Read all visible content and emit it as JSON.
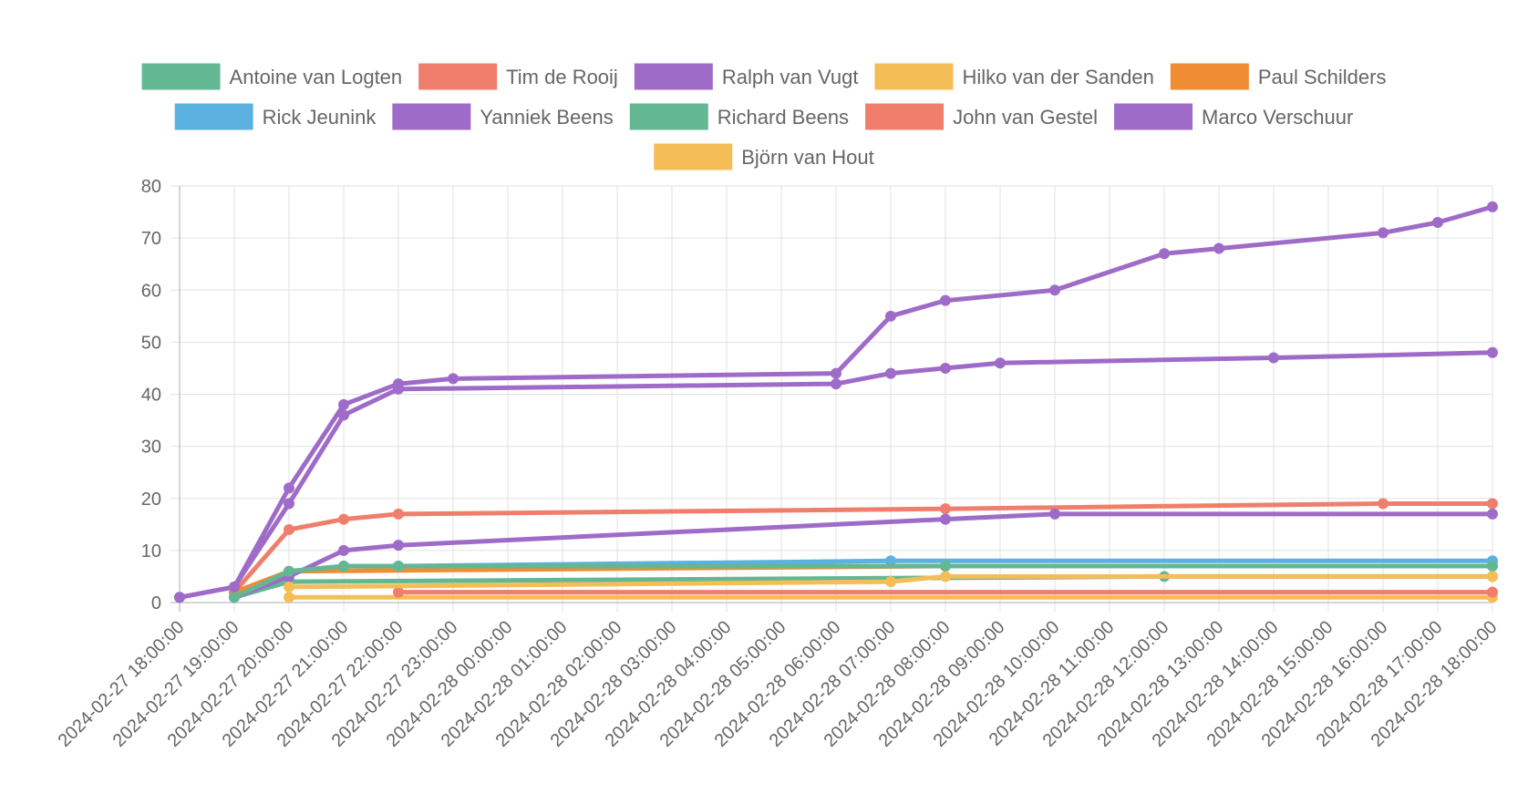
{
  "chart_data": {
    "type": "line",
    "x_unit": "datetime",
    "x_ticks": [
      "2024-02-27 18:00:00",
      "2024-02-27 19:00:00",
      "2024-02-27 20:00:00",
      "2024-02-27 21:00:00",
      "2024-02-27 22:00:00",
      "2024-02-27 23:00:00",
      "2024-02-28 00:00:00",
      "2024-02-28 01:00:00",
      "2024-02-28 02:00:00",
      "2024-02-28 03:00:00",
      "2024-02-28 04:00:00",
      "2024-02-28 05:00:00",
      "2024-02-28 06:00:00",
      "2024-02-28 07:00:00",
      "2024-02-28 08:00:00",
      "2024-02-28 09:00:00",
      "2024-02-28 10:00:00",
      "2024-02-28 11:00:00",
      "2024-02-28 12:00:00",
      "2024-02-28 13:00:00",
      "2024-02-28 14:00:00",
      "2024-02-28 15:00:00",
      "2024-02-28 16:00:00",
      "2024-02-28 17:00:00",
      "2024-02-28 18:00:00"
    ],
    "ylim": [
      0,
      80
    ],
    "y_ticks": [
      0,
      10,
      20,
      30,
      40,
      50,
      60,
      70,
      80
    ],
    "grid": true,
    "legend_position": "top",
    "series": [
      {
        "name": "Antoine van Logten",
        "color": "#63b793",
        "points": [
          [
            "2024-02-27 19:00:00",
            1
          ],
          [
            "2024-02-27 20:00:00",
            4
          ],
          [
            "2024-02-28 12:00:00",
            5
          ],
          [
            "2024-02-28 18:00:00",
            5
          ]
        ]
      },
      {
        "name": "Tim de Rooij",
        "color": "#ef7f6c",
        "points": [
          [
            "2024-02-27 19:00:00",
            2
          ],
          [
            "2024-02-27 20:00:00",
            14
          ],
          [
            "2024-02-27 21:00:00",
            16
          ],
          [
            "2024-02-27 22:00:00",
            17
          ],
          [
            "2024-02-28 08:00:00",
            18
          ],
          [
            "2024-02-28 16:00:00",
            19
          ],
          [
            "2024-02-28 18:00:00",
            19
          ]
        ]
      },
      {
        "name": "Ralph van Vugt",
        "color": "#9f6bc8",
        "points": [
          [
            "2024-02-27 18:00:00",
            1
          ],
          [
            "2024-02-27 19:00:00",
            3
          ],
          [
            "2024-02-27 20:00:00",
            22
          ],
          [
            "2024-02-27 21:00:00",
            38
          ],
          [
            "2024-02-27 22:00:00",
            42
          ],
          [
            "2024-02-27 23:00:00",
            43
          ],
          [
            "2024-02-28 06:00:00",
            44
          ],
          [
            "2024-02-28 07:00:00",
            55
          ],
          [
            "2024-02-28 08:00:00",
            58
          ],
          [
            "2024-02-28 10:00:00",
            60
          ],
          [
            "2024-02-28 12:00:00",
            67
          ],
          [
            "2024-02-28 13:00:00",
            68
          ],
          [
            "2024-02-28 16:00:00",
            71
          ],
          [
            "2024-02-28 17:00:00",
            73
          ],
          [
            "2024-02-28 18:00:00",
            76
          ]
        ]
      },
      {
        "name": "Hilko van der Sanden",
        "color": "#f5bd56",
        "points": [
          [
            "2024-02-27 20:00:00",
            1
          ],
          [
            "2024-02-28 18:00:00",
            1
          ]
        ]
      },
      {
        "name": "Paul Schilders",
        "color": "#f08c34",
        "points": [
          [
            "2024-02-27 19:00:00",
            2
          ],
          [
            "2024-02-27 20:00:00",
            6
          ],
          [
            "2024-02-28 08:00:00",
            7
          ],
          [
            "2024-02-28 18:00:00",
            7
          ]
        ]
      },
      {
        "name": "Rick Jeunink",
        "color": "#5bb2e0",
        "points": [
          [
            "2024-02-27 19:00:00",
            1
          ],
          [
            "2024-02-27 20:00:00",
            6
          ],
          [
            "2024-02-27 21:00:00",
            7
          ],
          [
            "2024-02-27 22:00:00",
            7
          ],
          [
            "2024-02-28 07:00:00",
            8
          ],
          [
            "2024-02-28 18:00:00",
            8
          ]
        ]
      },
      {
        "name": "Yanniek Beens",
        "color": "#9f6bc8",
        "points": [
          [
            "2024-02-27 19:00:00",
            1
          ],
          [
            "2024-02-27 20:00:00",
            5
          ],
          [
            "2024-02-27 21:00:00",
            10
          ],
          [
            "2024-02-27 22:00:00",
            11
          ],
          [
            "2024-02-28 08:00:00",
            16
          ],
          [
            "2024-02-28 10:00:00",
            17
          ],
          [
            "2024-02-28 18:00:00",
            17
          ]
        ]
      },
      {
        "name": "Richard Beens",
        "color": "#63b793",
        "points": [
          [
            "2024-02-27 19:00:00",
            1
          ],
          [
            "2024-02-27 20:00:00",
            6
          ],
          [
            "2024-02-27 21:00:00",
            7
          ],
          [
            "2024-02-27 22:00:00",
            7
          ],
          [
            "2024-02-28 08:00:00",
            7
          ],
          [
            "2024-02-28 18:00:00",
            7
          ]
        ]
      },
      {
        "name": "John van Gestel",
        "color": "#ef7f6c",
        "points": [
          [
            "2024-02-27 22:00:00",
            2
          ],
          [
            "2024-02-28 18:00:00",
            2
          ]
        ]
      },
      {
        "name": "Marco Verschuur",
        "color": "#9f6bc8",
        "points": [
          [
            "2024-02-27 18:00:00",
            1
          ],
          [
            "2024-02-27 19:00:00",
            3
          ],
          [
            "2024-02-27 20:00:00",
            19
          ],
          [
            "2024-02-27 21:00:00",
            36
          ],
          [
            "2024-02-27 22:00:00",
            41
          ],
          [
            "2024-02-28 06:00:00",
            42
          ],
          [
            "2024-02-28 07:00:00",
            44
          ],
          [
            "2024-02-28 08:00:00",
            45
          ],
          [
            "2024-02-28 09:00:00",
            46
          ],
          [
            "2024-02-28 14:00:00",
            47
          ],
          [
            "2024-02-28 18:00:00",
            48
          ]
        ]
      },
      {
        "name": "Björn van Hout",
        "color": "#f5bd56",
        "points": [
          [
            "2024-02-27 20:00:00",
            3
          ],
          [
            "2024-02-28 07:00:00",
            4
          ],
          [
            "2024-02-28 08:00:00",
            5
          ],
          [
            "2024-02-28 18:00:00",
            5
          ]
        ]
      }
    ]
  }
}
